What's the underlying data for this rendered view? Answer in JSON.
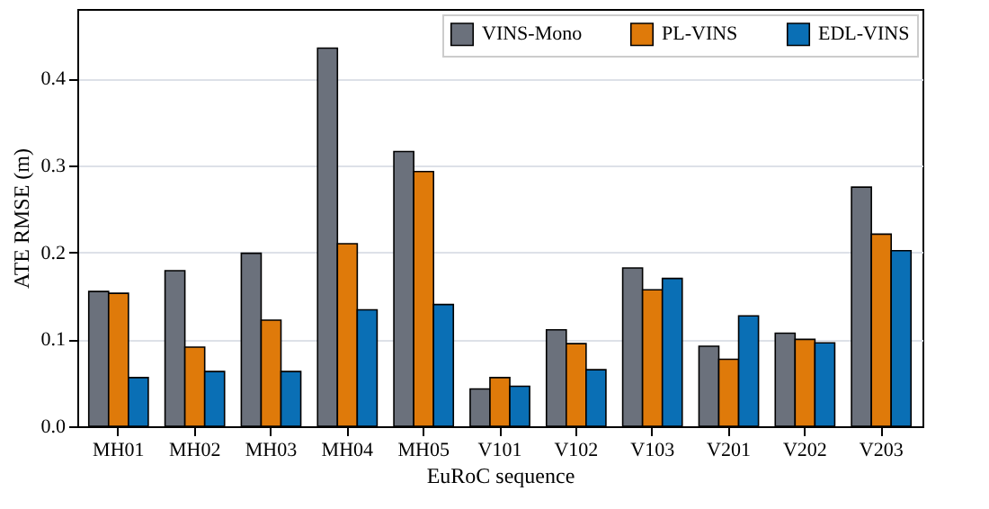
{
  "chart_data": {
    "type": "bar",
    "xlabel": "EuRoC sequence",
    "ylabel": "ATE RMSE (m)",
    "categories": [
      "MH01",
      "MH02",
      "MH03",
      "MH04",
      "MH05",
      "V101",
      "V102",
      "V103",
      "V201",
      "V202",
      "V203"
    ],
    "series": [
      {
        "name": "VINS-Mono",
        "color": "#6b717c",
        "values": [
          0.155,
          0.179,
          0.199,
          0.435,
          0.316,
          0.043,
          0.111,
          0.182,
          0.092,
          0.107,
          0.275
        ]
      },
      {
        "name": "PL-VINS",
        "color": "#df7a0a",
        "values": [
          0.153,
          0.091,
          0.122,
          0.21,
          0.293,
          0.056,
          0.095,
          0.157,
          0.077,
          0.1,
          0.221
        ]
      },
      {
        "name": "EDL-VINS",
        "color": "#0a6fb5",
        "values": [
          0.056,
          0.063,
          0.063,
          0.134,
          0.14,
          0.046,
          0.065,
          0.17,
          0.127,
          0.096,
          0.202
        ]
      }
    ],
    "ylim": [
      0,
      0.48
    ],
    "yticks": [
      {
        "value": 0,
        "label": "0.0"
      },
      0.1,
      0.2,
      0.3,
      0.4
    ],
    "grid": "y",
    "legend": "top right"
  }
}
